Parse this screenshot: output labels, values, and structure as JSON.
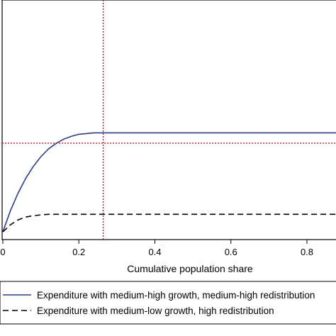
{
  "chart_data": {
    "type": "line",
    "title": "",
    "xlabel": "Cumulative population share",
    "ylabel": "",
    "xlim": [
      0,
      0.88
    ],
    "x_ticks": [
      0,
      0.2,
      0.4,
      0.6,
      0.8
    ],
    "x_tick_labels": [
      "0",
      "0.2",
      "0.4",
      "0.6",
      "0.8"
    ],
    "grid": false,
    "reference_lines": [
      {
        "orientation": "vertical",
        "x": 0.264,
        "style": "dotted",
        "color": "#cc0000"
      },
      {
        "orientation": "horizontal",
        "y": 0.62,
        "style": "dotted",
        "color": "#cc0000"
      }
    ],
    "legend_placement": "bottom",
    "series": [
      {
        "name": "Expenditure with medium-high growth, medium-high redistribution",
        "style": "solid",
        "color": "#2e3a87",
        "x": [
          0,
          0.02,
          0.04,
          0.06,
          0.08,
          0.1,
          0.12,
          0.14,
          0.16,
          0.18,
          0.2,
          0.22,
          0.24,
          0.26,
          0.4,
          0.6,
          0.8,
          0.88
        ],
        "y": [
          0.0,
          0.03,
          0.055,
          0.076,
          0.093,
          0.107,
          0.118,
          0.126,
          0.132,
          0.136,
          0.139,
          0.14,
          0.141,
          0.141,
          0.141,
          0.141,
          0.141,
          0.141
        ]
      },
      {
        "name": "Expenditure with medium-low growth, high redistribution",
        "style": "dashed",
        "color": "#000000",
        "x": [
          0,
          0.02,
          0.04,
          0.06,
          0.08,
          0.1,
          0.12,
          0.2,
          0.4,
          0.6,
          0.8,
          0.88
        ],
        "y": [
          0.0,
          0.01,
          0.017,
          0.021,
          0.023,
          0.024,
          0.025,
          0.025,
          0.025,
          0.025,
          0.025,
          0.025
        ]
      }
    ]
  },
  "legend": {
    "items": [
      {
        "label": "Expenditure with medium-high growth, medium-high redistribution"
      },
      {
        "label": "Expenditure with medium-low growth, high redistribution"
      }
    ]
  },
  "colors": {
    "plot_border": "#000000",
    "legend_border": "#000000",
    "background": "#ffffff"
  }
}
